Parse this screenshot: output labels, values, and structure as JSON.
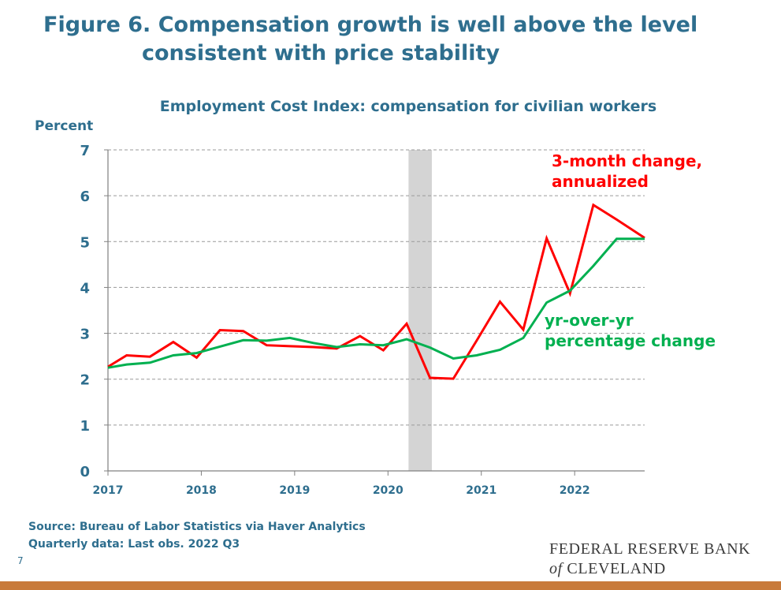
{
  "page": {
    "title_line1": "Figure 6. Compensation growth is well above the level",
    "title_line2": "consistent with price stability",
    "source_line": "Source: Bureau of Labor Statistics via Haver Analytics",
    "data_note": "Quarterly data: Last obs. 2022 Q3",
    "slide_number": "7",
    "logo": {
      "line1": "FEDERAL RESERVE BANK",
      "of": "of",
      "city": "CLEVELAND"
    }
  },
  "chart_data": {
    "type": "line",
    "title": "Employment Cost Index: compensation for civilian workers",
    "ylabel": "Percent",
    "xlabel": "",
    "ylim": [
      0,
      7
    ],
    "xlim": [
      2017.0,
      2022.75
    ],
    "yticks": [
      0,
      1,
      2,
      3,
      4,
      5,
      6,
      7
    ],
    "xticks": [
      {
        "value": 2017,
        "label": "2017"
      },
      {
        "value": 2018,
        "label": "2018"
      },
      {
        "value": 2019,
        "label": "2019"
      },
      {
        "value": 2020,
        "label": "2020"
      },
      {
        "value": 2021,
        "label": "2021"
      },
      {
        "value": 2022,
        "label": "2022"
      }
    ],
    "grid": "horizontal dashed",
    "recession_shading": {
      "start": 2020.22,
      "end": 2020.47,
      "color": "#d4d4d4"
    },
    "series": [
      {
        "name": "3-month change, annualized",
        "color": "#ff0000",
        "label_lines": [
          "3-month change,",
          "annualized"
        ],
        "x": [
          2017.0,
          2017.2,
          2017.45,
          2017.7,
          2017.95,
          2018.2,
          2018.45,
          2018.7,
          2018.95,
          2019.2,
          2019.45,
          2019.7,
          2019.95,
          2020.2,
          2020.45,
          2020.7,
          2020.95,
          2021.2,
          2021.45,
          2021.7,
          2021.95,
          2022.2,
          2022.45,
          2022.75
        ],
        "values": [
          2.27,
          2.52,
          2.49,
          2.81,
          2.47,
          3.07,
          3.05,
          2.74,
          2.72,
          2.7,
          2.67,
          2.94,
          2.63,
          3.21,
          2.03,
          2.01,
          2.84,
          3.69,
          3.08,
          5.07,
          3.87,
          5.8,
          5.48,
          5.08
        ]
      },
      {
        "name": "yr-over-yr percentage change",
        "color": "#00b050",
        "label_lines": [
          "yr-over-yr",
          "percentage change"
        ],
        "x": [
          2017.0,
          2017.2,
          2017.45,
          2017.7,
          2017.95,
          2018.2,
          2018.45,
          2018.7,
          2018.95,
          2019.2,
          2019.45,
          2019.7,
          2019.95,
          2020.2,
          2020.45,
          2020.7,
          2020.95,
          2021.2,
          2021.45,
          2021.7,
          2021.95,
          2022.2,
          2022.45,
          2022.75
        ],
        "values": [
          2.25,
          2.32,
          2.36,
          2.52,
          2.57,
          2.71,
          2.85,
          2.84,
          2.9,
          2.79,
          2.7,
          2.76,
          2.74,
          2.87,
          2.69,
          2.45,
          2.52,
          2.64,
          2.9,
          3.67,
          3.93,
          4.47,
          5.06,
          5.06
        ]
      }
    ]
  }
}
